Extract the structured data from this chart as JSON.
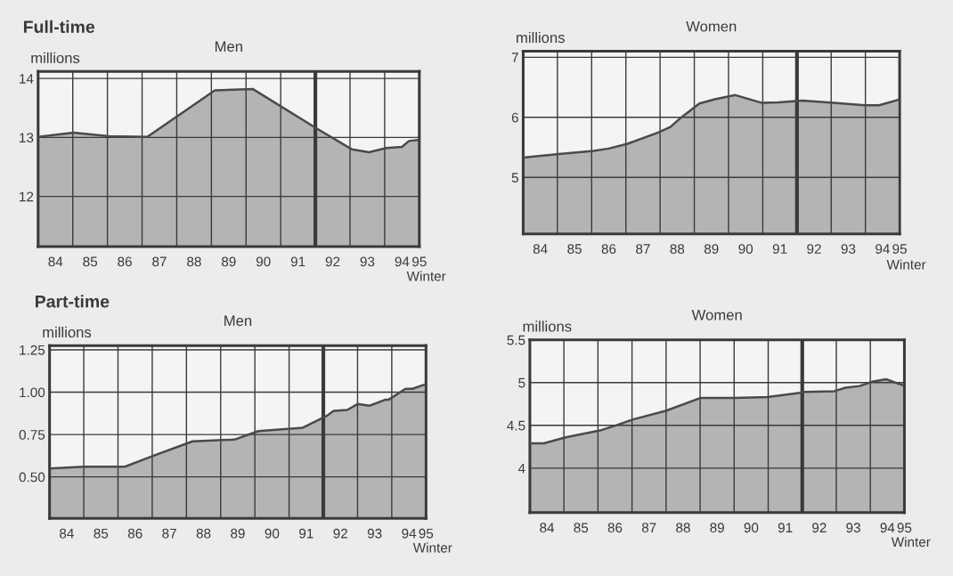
{
  "chart_data": [
    {
      "type": "area",
      "title": "Men",
      "ylabel": "millions",
      "xlabel": "Winter",
      "annotations": [
        "Full-time"
      ],
      "x": [
        84,
        85.02,
        86.05,
        87.15,
        89.1,
        90.2,
        92.1,
        93.05,
        93.55,
        94.05,
        94.5,
        94.7,
        95
      ],
      "series": [
        {
          "color": "#4a4a4a",
          "values": [
            13.01,
            13.08,
            13.02,
            13.01,
            13.8,
            13.82,
            13.13,
            12.8,
            12.75,
            12.82,
            12.84,
            12.94,
            12.96
          ]
        }
      ],
      "xlim": [
        84,
        95
      ],
      "ylim": [
        11.15,
        14.12
      ],
      "yticks": [
        12,
        13,
        14
      ],
      "xticks": [
        {
          "value": 84.5,
          "label": "84"
        },
        {
          "value": 85,
          "label": null
        },
        {
          "value": 85.5,
          "label": "85"
        },
        {
          "value": 86,
          "label": null
        },
        {
          "value": 86.5,
          "label": "86"
        },
        {
          "value": 87,
          "label": null
        },
        {
          "value": 87.5,
          "label": "87"
        },
        {
          "value": 88,
          "label": null
        },
        {
          "value": 88.5,
          "label": "88"
        },
        {
          "value": 89,
          "label": null
        },
        {
          "value": 89.5,
          "label": "89"
        },
        {
          "value": 90,
          "label": null
        },
        {
          "value": 90.5,
          "label": "90"
        },
        {
          "value": 91,
          "label": null
        },
        {
          "value": 91.5,
          "label": "91"
        },
        {
          "value": 92,
          "label": null
        },
        {
          "value": 92.5,
          "label": "92"
        },
        {
          "value": 93,
          "label": null
        },
        {
          "value": 93.5,
          "label": "93"
        },
        {
          "value": 94,
          "label": null
        },
        {
          "value": 94.5,
          "label": "94"
        },
        {
          "value": 95,
          "label": "95"
        }
      ],
      "ref_lines": [
        {
          "axis": "x",
          "value": 92
        }
      ],
      "grid": true
    },
    {
      "type": "area",
      "title": "Women",
      "ylabel": "millions",
      "xlabel": "Winter",
      "x": [
        84,
        85.05,
        86.05,
        86.5,
        87.05,
        87.96,
        88.3,
        88.6,
        89.15,
        89.6,
        90.2,
        90.98,
        91.45,
        92.17,
        92.9,
        93.99,
        94.4,
        94.95
      ],
      "series": [
        {
          "color": "#4a4a4a",
          "values": [
            5.33,
            5.39,
            5.44,
            5.48,
            5.56,
            5.75,
            5.84,
            5.99,
            6.23,
            6.3,
            6.37,
            6.24,
            6.25,
            6.28,
            6.25,
            6.2,
            6.2,
            6.29
          ]
        }
      ],
      "xlim": [
        84,
        95
      ],
      "ylim": [
        4.06,
        7.1
      ],
      "yticks": [
        5,
        6,
        7
      ],
      "xticks": [
        {
          "value": 84.5,
          "label": "84"
        },
        {
          "value": 85,
          "label": null
        },
        {
          "value": 85.5,
          "label": "85"
        },
        {
          "value": 86,
          "label": null
        },
        {
          "value": 86.5,
          "label": "86"
        },
        {
          "value": 87,
          "label": null
        },
        {
          "value": 87.5,
          "label": "87"
        },
        {
          "value": 88,
          "label": null
        },
        {
          "value": 88.5,
          "label": "88"
        },
        {
          "value": 89,
          "label": null
        },
        {
          "value": 89.5,
          "label": "89"
        },
        {
          "value": 90,
          "label": null
        },
        {
          "value": 90.5,
          "label": "90"
        },
        {
          "value": 91,
          "label": null
        },
        {
          "value": 91.5,
          "label": "91"
        },
        {
          "value": 92,
          "label": null
        },
        {
          "value": 92.5,
          "label": "92"
        },
        {
          "value": 93,
          "label": null
        },
        {
          "value": 93.5,
          "label": "93"
        },
        {
          "value": 94,
          "label": null
        },
        {
          "value": 94.5,
          "label": "94"
        },
        {
          "value": 95,
          "label": "95"
        }
      ],
      "ref_lines": [
        {
          "axis": "x",
          "value": 92
        }
      ],
      "grid": true
    },
    {
      "type": "area",
      "title": "Men",
      "ylabel": "millions",
      "xlabel": "Winter",
      "annotations": [
        "Part-time"
      ],
      "x": [
        84,
        85,
        86.2,
        86.97,
        88.18,
        89.4,
        90.1,
        91.4,
        92.1,
        92.3,
        92.7,
        93.0,
        93.35,
        93.8,
        93.9,
        94.4,
        94.6,
        94.96
      ],
      "series": [
        {
          "color": "#4a4a4a",
          "values": [
            0.55,
            0.56,
            0.56,
            0.62,
            0.71,
            0.72,
            0.77,
            0.79,
            0.86,
            0.89,
            0.895,
            0.93,
            0.92,
            0.955,
            0.955,
            1.02,
            1.02,
            1.045
          ]
        }
      ],
      "xlim": [
        84,
        95
      ],
      "ylim": [
        0.255,
        1.275
      ],
      "yticks": [
        {
          "value": 0.5,
          "label": "0.50"
        },
        0.75,
        {
          "value": 1.0,
          "label": "1.00"
        },
        1.25
      ],
      "xticks": [
        {
          "value": 84.5,
          "label": "84"
        },
        {
          "value": 85,
          "label": null
        },
        {
          "value": 85.5,
          "label": "85"
        },
        {
          "value": 86,
          "label": null
        },
        {
          "value": 86.5,
          "label": "86"
        },
        {
          "value": 87,
          "label": null
        },
        {
          "value": 87.5,
          "label": "87"
        },
        {
          "value": 88,
          "label": null
        },
        {
          "value": 88.5,
          "label": "88"
        },
        {
          "value": 89,
          "label": null
        },
        {
          "value": 89.5,
          "label": "89"
        },
        {
          "value": 90,
          "label": null
        },
        {
          "value": 90.5,
          "label": "90"
        },
        {
          "value": 91,
          "label": null
        },
        {
          "value": 91.5,
          "label": "91"
        },
        {
          "value": 92,
          "label": null
        },
        {
          "value": 92.5,
          "label": "92"
        },
        {
          "value": 93,
          "label": null
        },
        {
          "value": 93.5,
          "label": "93"
        },
        {
          "value": 94,
          "label": null
        },
        {
          "value": 94.5,
          "label": "94"
        },
        {
          "value": 95,
          "label": "95"
        }
      ],
      "ref_lines": [
        {
          "axis": "x",
          "value": 92
        }
      ],
      "grid": true
    },
    {
      "type": "area",
      "title": "Women",
      "ylabel": "millions",
      "xlabel": "Winter",
      "x": [
        84,
        84.41,
        85.05,
        86.06,
        86.6,
        87.03,
        87.99,
        89.0,
        90.0,
        90.97,
        91.94,
        92.07,
        92.94,
        93.27,
        93.68,
        94.05,
        94.46,
        94.73,
        94.96
      ],
      "series": [
        {
          "color": "#4a4a4a",
          "values": [
            4.29,
            4.29,
            4.36,
            4.44,
            4.51,
            4.57,
            4.67,
            4.82,
            4.82,
            4.83,
            4.88,
            4.89,
            4.9,
            4.94,
            4.96,
            5.01,
            5.04,
            5.0,
            4.97
          ]
        }
      ],
      "xlim": [
        84,
        95
      ],
      "ylim": [
        3.48,
        5.5
      ],
      "yticks": [
        4,
        4.5,
        5,
        5.5
      ],
      "xticks": [
        {
          "value": 84.5,
          "label": "84"
        },
        {
          "value": 85,
          "label": null
        },
        {
          "value": 85.5,
          "label": "85"
        },
        {
          "value": 86,
          "label": null
        },
        {
          "value": 86.5,
          "label": "86"
        },
        {
          "value": 87,
          "label": null
        },
        {
          "value": 87.5,
          "label": "87"
        },
        {
          "value": 88,
          "label": null
        },
        {
          "value": 88.5,
          "label": "88"
        },
        {
          "value": 89,
          "label": null
        },
        {
          "value": 89.5,
          "label": "89"
        },
        {
          "value": 90,
          "label": null
        },
        {
          "value": 90.5,
          "label": "90"
        },
        {
          "value": 91,
          "label": null
        },
        {
          "value": 91.5,
          "label": "91"
        },
        {
          "value": 92,
          "label": null
        },
        {
          "value": 92.5,
          "label": "92"
        },
        {
          "value": 93,
          "label": null
        },
        {
          "value": 93.5,
          "label": "93"
        },
        {
          "value": 94,
          "label": null
        },
        {
          "value": 94.5,
          "label": "94"
        },
        {
          "value": 95,
          "label": "95"
        }
      ],
      "ref_lines": [
        {
          "axis": "x",
          "value": 92
        }
      ],
      "grid": true
    }
  ]
}
